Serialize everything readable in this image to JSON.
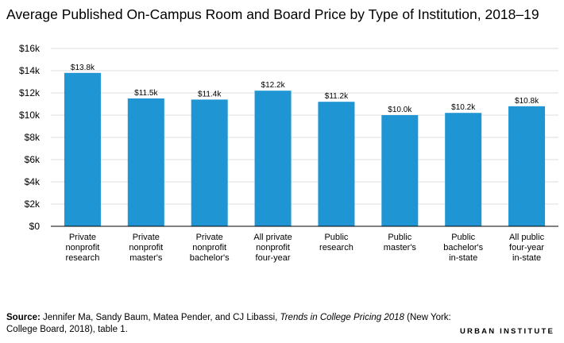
{
  "chart_data": {
    "type": "bar",
    "title": "Average Published On-Campus Room and Board Price by Type of Institution, 2018–19",
    "categories": [
      [
        "Private",
        "nonprofit",
        "research"
      ],
      [
        "Private",
        "nonprofit",
        "master's"
      ],
      [
        "Private",
        "nonprofit",
        "bachelor's"
      ],
      [
        "All private",
        "nonprofit",
        "four-year"
      ],
      [
        "Public",
        "research"
      ],
      [
        "Public",
        "master's"
      ],
      [
        "Public",
        "bachelor's",
        "in-state"
      ],
      [
        "All public",
        "four-year",
        "in-state"
      ]
    ],
    "values": [
      13.8,
      11.5,
      11.4,
      12.2,
      11.2,
      10.0,
      10.2,
      10.8
    ],
    "value_labels": [
      "$13.8k",
      "$11.5k",
      "$11.4k",
      "$12.2k",
      "$11.2k",
      "$10.0k",
      "$10.2k",
      "$10.8k"
    ],
    "yticks": [
      0,
      2,
      4,
      6,
      8,
      10,
      12,
      14,
      16
    ],
    "ytick_labels": [
      "$0",
      "$2k",
      "$4k",
      "$6k",
      "$8k",
      "$10k",
      "$12k",
      "$14k",
      "$16k"
    ],
    "ylim": [
      0,
      16
    ],
    "grid": true,
    "bar_color": "#1f96d3",
    "grid_color": "#dedede"
  },
  "source": {
    "lead": "Source:",
    "text1": " Jennifer Ma, Sandy Baum, Matea Pender, and CJ Libassi, ",
    "italic": "Trends in College Pricing 2018",
    "text2": " (New York: College Board, 2018), table 1."
  },
  "brand": "URBAN INSTITUTE"
}
